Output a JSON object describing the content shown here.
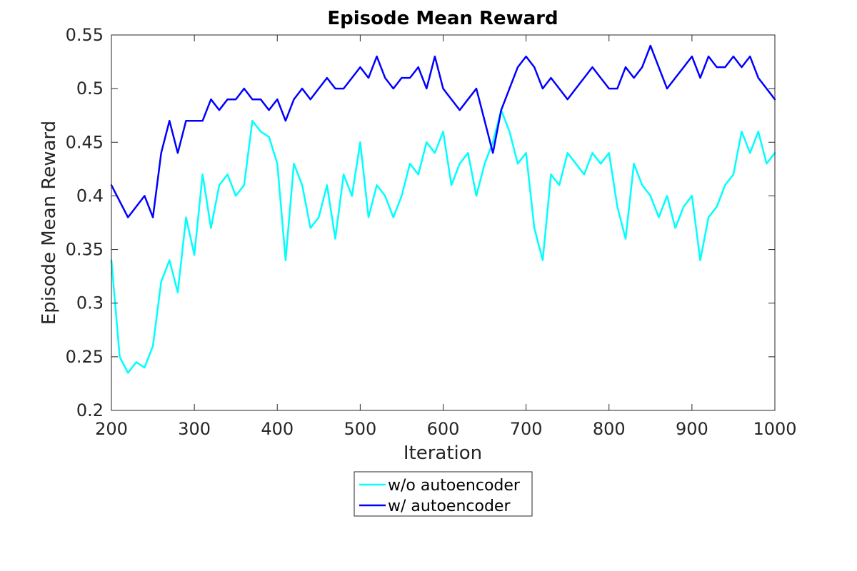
{
  "chart_data": {
    "type": "line",
    "title": "Episode Mean Reward",
    "xlabel": "Iteration",
    "ylabel": "Episode Mean Reward",
    "xlim": [
      200,
      1000
    ],
    "ylim": [
      0.2,
      0.55
    ],
    "xticks": [
      "200",
      "300",
      "400",
      "500",
      "600",
      "700",
      "800",
      "900",
      "1000"
    ],
    "yticks": [
      "0.2",
      "0.25",
      "0.3",
      "0.35",
      "0.4",
      "0.45",
      "0.5",
      "0.55"
    ],
    "grid": false,
    "legend_position": "bottom-center-outside",
    "x": [
      200,
      210,
      220,
      230,
      240,
      250,
      260,
      270,
      280,
      290,
      300,
      310,
      320,
      330,
      340,
      350,
      360,
      370,
      380,
      390,
      400,
      410,
      420,
      430,
      440,
      450,
      460,
      470,
      480,
      490,
      500,
      510,
      520,
      530,
      540,
      550,
      560,
      570,
      580,
      590,
      600,
      610,
      620,
      630,
      640,
      650,
      660,
      670,
      680,
      690,
      700,
      710,
      720,
      730,
      740,
      750,
      760,
      770,
      780,
      790,
      800,
      810,
      820,
      830,
      840,
      850,
      860,
      870,
      880,
      890,
      900,
      910,
      920,
      930,
      940,
      950,
      960,
      970,
      980,
      990,
      1000
    ],
    "series": [
      {
        "name": "w/o autoencoder",
        "color": "#00ffff",
        "values": [
          0.34,
          0.25,
          0.235,
          0.245,
          0.24,
          0.26,
          0.32,
          0.34,
          0.31,
          0.38,
          0.345,
          0.42,
          0.37,
          0.41,
          0.42,
          0.4,
          0.41,
          0.47,
          0.46,
          0.455,
          0.43,
          0.34,
          0.43,
          0.41,
          0.37,
          0.38,
          0.41,
          0.36,
          0.42,
          0.4,
          0.45,
          0.38,
          0.41,
          0.4,
          0.38,
          0.4,
          0.43,
          0.42,
          0.45,
          0.44,
          0.46,
          0.41,
          0.43,
          0.44,
          0.4,
          0.43,
          0.45,
          0.48,
          0.46,
          0.43,
          0.44,
          0.37,
          0.34,
          0.42,
          0.41,
          0.44,
          0.43,
          0.42,
          0.44,
          0.43,
          0.44,
          0.39,
          0.36,
          0.43,
          0.41,
          0.4,
          0.38,
          0.4,
          0.37,
          0.39,
          0.4,
          0.34,
          0.38,
          0.39,
          0.41,
          0.42,
          0.46,
          0.44,
          0.46,
          0.43,
          0.44
        ]
      },
      {
        "name": "w/ autoencoder",
        "color": "#0000ff",
        "values": [
          0.41,
          0.395,
          0.38,
          0.39,
          0.4,
          0.38,
          0.44,
          0.47,
          0.44,
          0.47,
          0.47,
          0.47,
          0.49,
          0.48,
          0.49,
          0.49,
          0.5,
          0.49,
          0.49,
          0.48,
          0.49,
          0.47,
          0.49,
          0.5,
          0.49,
          0.5,
          0.51,
          0.5,
          0.5,
          0.51,
          0.52,
          0.51,
          0.53,
          0.51,
          0.5,
          0.51,
          0.51,
          0.52,
          0.5,
          0.53,
          0.5,
          0.49,
          0.48,
          0.49,
          0.5,
          0.47,
          0.44,
          0.48,
          0.5,
          0.52,
          0.53,
          0.52,
          0.5,
          0.51,
          0.5,
          0.49,
          0.5,
          0.51,
          0.52,
          0.51,
          0.5,
          0.5,
          0.52,
          0.51,
          0.52,
          0.54,
          0.52,
          0.5,
          0.51,
          0.52,
          0.53,
          0.51,
          0.53,
          0.52,
          0.52,
          0.53,
          0.52,
          0.53,
          0.51,
          0.5,
          0.49
        ]
      }
    ]
  }
}
